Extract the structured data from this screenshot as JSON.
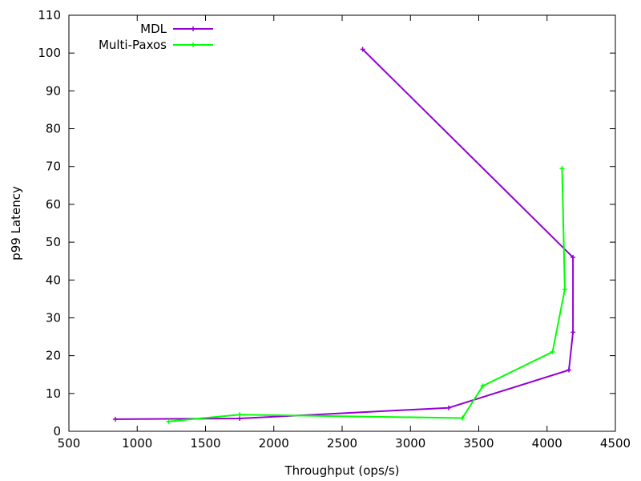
{
  "chart_data": {
    "type": "line",
    "title": "",
    "xlabel": "Throughput (ops/s)",
    "ylabel": "p99 Latency",
    "xlim": [
      500,
      4500
    ],
    "ylim": [
      0,
      110
    ],
    "x_ticks": [
      500,
      1000,
      1500,
      2000,
      2500,
      3000,
      3500,
      4000,
      4500
    ],
    "y_ticks": [
      0,
      10,
      20,
      30,
      40,
      50,
      60,
      70,
      80,
      90,
      100,
      110
    ],
    "grid": false,
    "legend_position": "top-left",
    "series": [
      {
        "name": "MDL",
        "color": "#9400d3",
        "points": [
          {
            "x": 840,
            "y": 3.2
          },
          {
            "x": 1750,
            "y": 3.4
          },
          {
            "x": 3280,
            "y": 6.2
          },
          {
            "x": 4160,
            "y": 16.2
          },
          {
            "x": 4190,
            "y": 26.2
          },
          {
            "x": 4190,
            "y": 46
          },
          {
            "x": 2650,
            "y": 101
          }
        ]
      },
      {
        "name": "Multi-Paxos",
        "color": "#00ff00",
        "points": [
          {
            "x": 1230,
            "y": 2.6
          },
          {
            "x": 1750,
            "y": 4.4
          },
          {
            "x": 3380,
            "y": 3.5
          },
          {
            "x": 3530,
            "y": 12
          },
          {
            "x": 4040,
            "y": 21
          },
          {
            "x": 4130,
            "y": 37.5
          },
          {
            "x": 4110,
            "y": 69.5
          }
        ]
      }
    ]
  }
}
